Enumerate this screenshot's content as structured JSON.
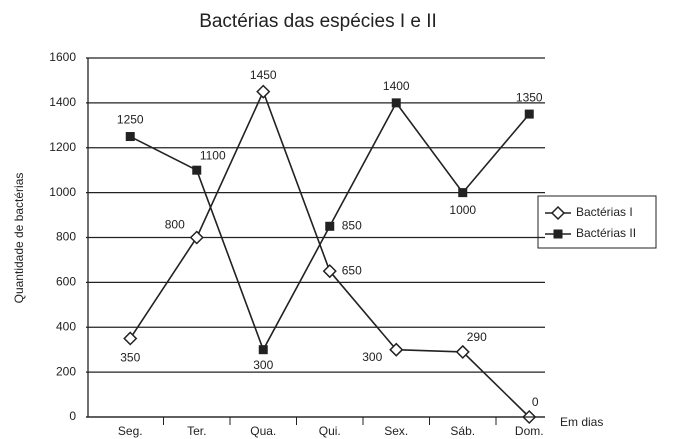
{
  "chart_data": {
    "type": "line",
    "title": "Bactérias das espécies I e II",
    "y_label": "Quantidade de bactérias",
    "x_label": "Em dias",
    "categories": [
      "Seg.",
      "Ter.",
      "Qua.",
      "Qui.",
      "Sex.",
      "Sáb.",
      "Dom."
    ],
    "series": [
      {
        "name": "Bactérias I",
        "color": "#222222",
        "marker": "diamond",
        "values": [
          350,
          800,
          1450,
          650,
          300,
          290,
          0
        ]
      },
      {
        "name": "Bactérias II",
        "color": "#222222",
        "marker": "square",
        "values": [
          1250,
          1100,
          300,
          850,
          1400,
          1000,
          1350
        ]
      }
    ],
    "ylim": [
      0,
      1600
    ],
    "yticks": [
      0,
      200,
      400,
      600,
      800,
      1000,
      1200,
      1400,
      1600
    ],
    "grid": true,
    "legend": "right"
  }
}
